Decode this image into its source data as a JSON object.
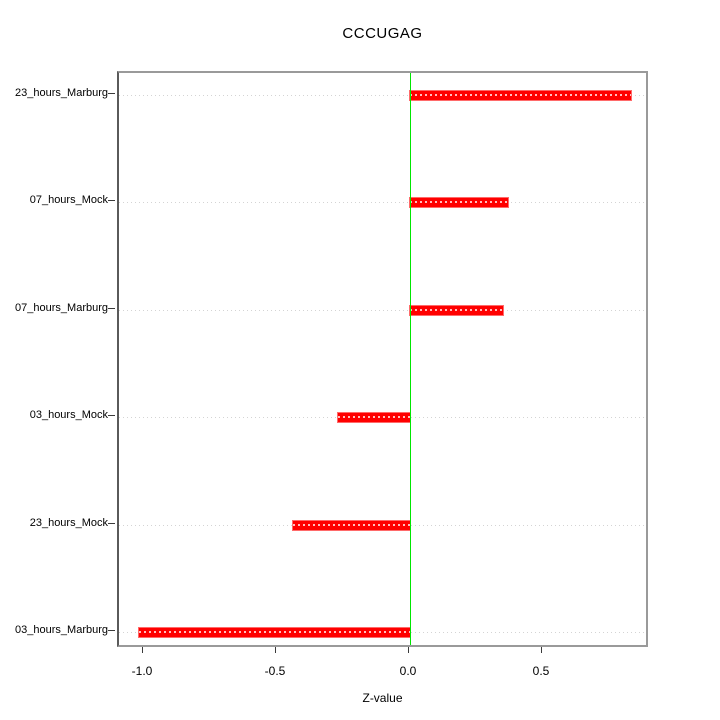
{
  "chart_data": {
    "type": "bar",
    "orientation": "horizontal",
    "title": "CCCUGAG",
    "xlabel": "Z-value",
    "ylabel": "",
    "categories": [
      "23_hours_Marburg",
      "07_hours_Mock",
      "07_hours_Marburg",
      "03_hours_Mock",
      "23_hours_Mock",
      "03_hours_Marburg"
    ],
    "values": [
      0.83,
      0.37,
      0.35,
      -0.27,
      -0.44,
      -1.02
    ],
    "xlim": [
      -1.09,
      0.9
    ],
    "x_ticks": [
      {
        "value": -1.0,
        "label": "-1.0"
      },
      {
        "value": -0.5,
        "label": "-0.5"
      },
      {
        "value": 0.0,
        "label": "0.0"
      },
      {
        "value": 0.5,
        "label": "0.5"
      }
    ],
    "reference_line": {
      "value": 0.0,
      "color": "#00e600"
    },
    "bar_color": "#ff0000",
    "grid": "horizontal-dotted",
    "grid_color": "#d4d4d4",
    "legend": "none"
  }
}
